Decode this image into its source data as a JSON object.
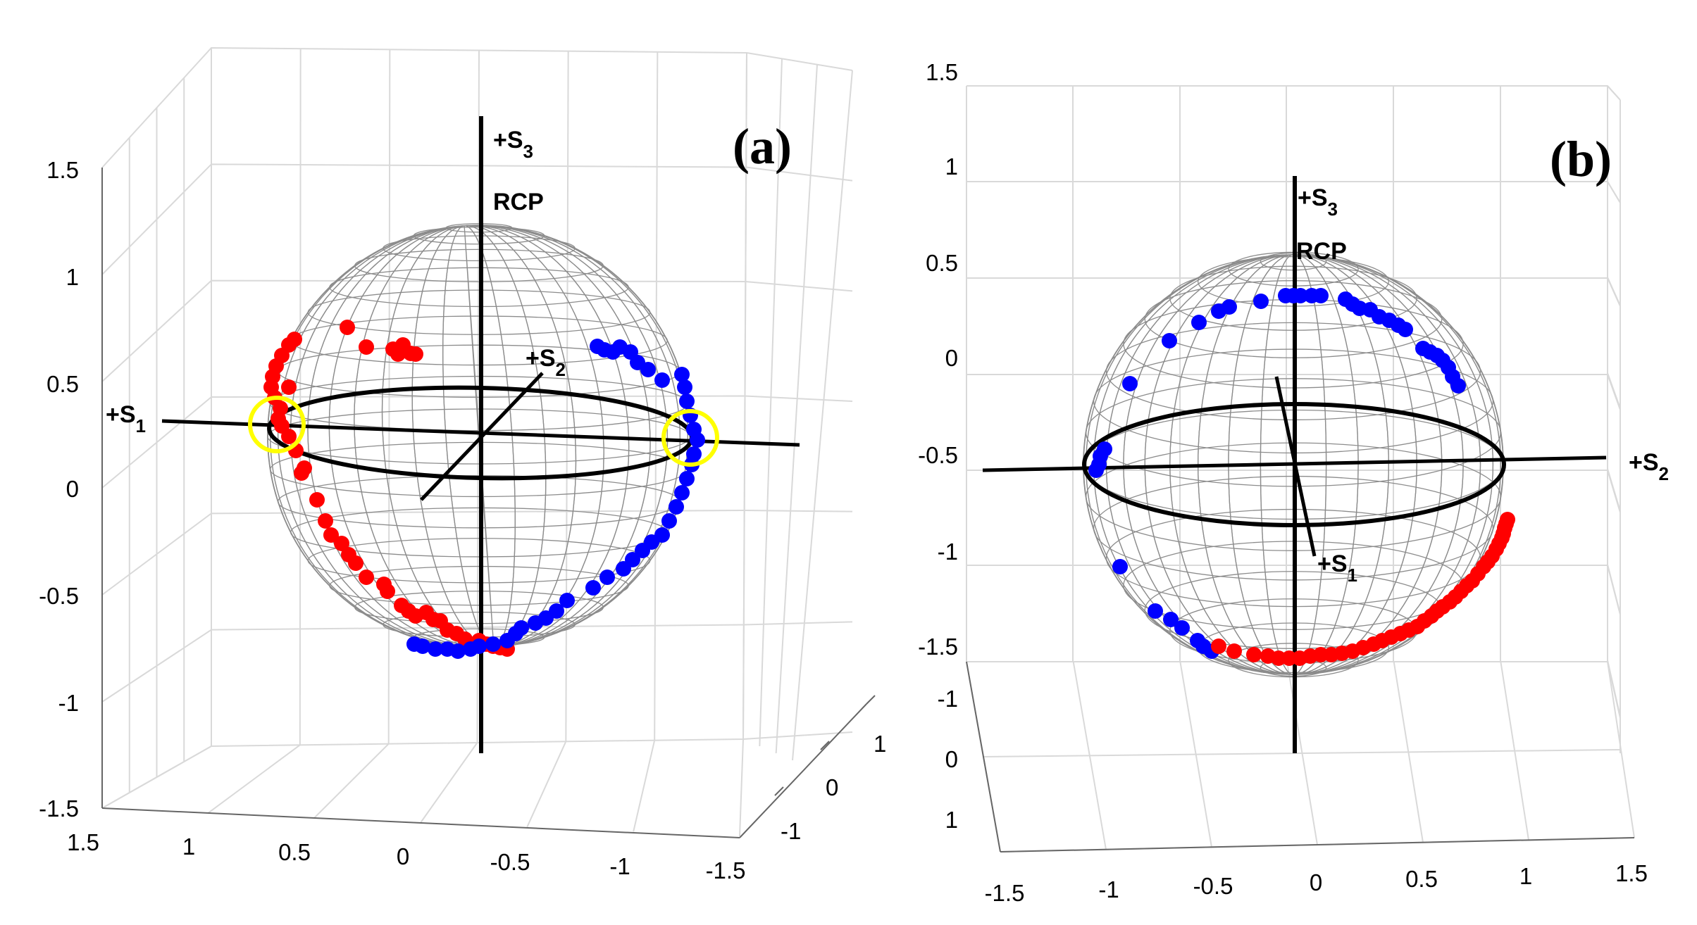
{
  "chart_data": [
    {
      "type": "scatter",
      "panel_label": "(a)",
      "description_3d": "Poincare sphere with polarization-state trajectories",
      "axes": {
        "vertical_ticks": [
          "1.5",
          "1",
          "0.5",
          "0",
          "-0.5",
          "-1",
          "-1.5"
        ],
        "bottom_ticks": [
          "1.5",
          "1",
          "0.5",
          "0",
          "-0.5",
          "-1",
          "-1.5"
        ],
        "depth_ticks": [
          "1",
          "0",
          "-1"
        ]
      },
      "axis_labels": {
        "s1": "+S",
        "s1_sub": "1",
        "s2": "+S",
        "s2_sub": "2",
        "s3": "+S",
        "s3_sub": "3",
        "pole": "RCP"
      },
      "series": [
        {
          "name": "red",
          "color": "#ff0000"
        },
        {
          "name": "blue",
          "color": "#0000ff"
        }
      ],
      "highlights": {
        "color": "#ffff00",
        "count": 2
      }
    },
    {
      "type": "scatter",
      "panel_label": "(b)",
      "description_3d": "Poincare sphere with polarization-state trajectories",
      "axes": {
        "vertical_ticks": [
          "1.5",
          "1",
          "0.5",
          "0",
          "-0.5",
          "-1",
          "-1.5"
        ],
        "depth_ticks": [
          "-1",
          "0",
          "1"
        ],
        "bottom_ticks": [
          "-1.5",
          "-1",
          "-0.5",
          "0",
          "0.5",
          "1",
          "1.5"
        ]
      },
      "axis_labels": {
        "s1": "+S",
        "s1_sub": "1",
        "s2": "+S",
        "s2_sub": "2",
        "s3": "+S",
        "s3_sub": "3",
        "pole": "RCP"
      },
      "series": [
        {
          "name": "red",
          "color": "#ff0000"
        },
        {
          "name": "blue",
          "color": "#0000ff"
        }
      ]
    }
  ],
  "colors": {
    "grid": "#d9d9d9",
    "mesh": "#8c8c8c",
    "axis": "#000000"
  }
}
